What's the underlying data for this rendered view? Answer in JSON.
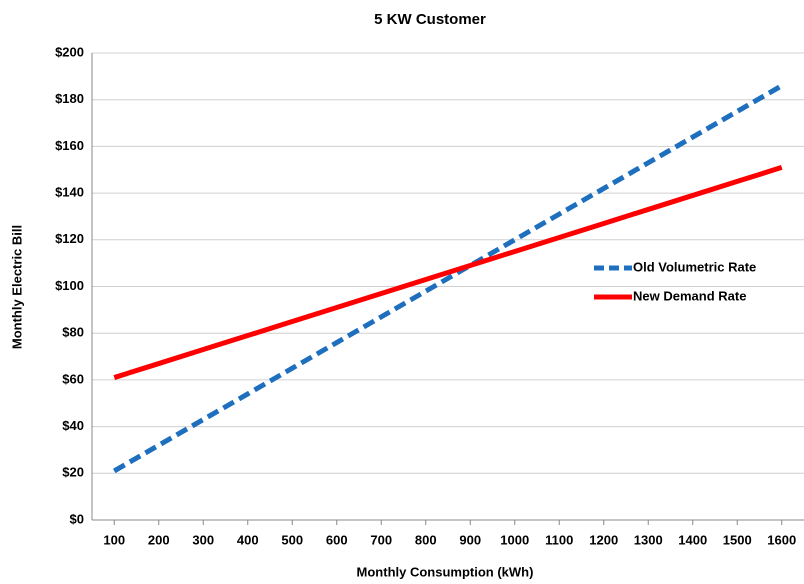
{
  "chart_data": {
    "type": "line",
    "title": "5 KW Customer",
    "x_label": "Monthly Consumption (kWh)",
    "y_label": "Monthly Electric Bill",
    "x": [
      100,
      200,
      300,
      400,
      500,
      600,
      700,
      800,
      900,
      1000,
      1100,
      1200,
      1300,
      1400,
      1500,
      1600
    ],
    "series": [
      {
        "name": "Old Volumetric Rate",
        "color": "#1f6fbf",
        "dash": true,
        "values": [
          21,
          32,
          43,
          54,
          65,
          76,
          87,
          98,
          109,
          120,
          131,
          142,
          153,
          164,
          175,
          186
        ]
      },
      {
        "name": "New Demand Rate",
        "color": "#ff0000",
        "dash": false,
        "values": [
          61,
          67,
          73,
          79,
          85,
          91,
          97,
          103,
          109,
          115,
          121,
          127,
          133,
          139,
          145,
          151
        ]
      }
    ],
    "xlim": [
      50,
      1650
    ],
    "xticks": [
      100,
      200,
      300,
      400,
      500,
      600,
      700,
      800,
      900,
      1000,
      1100,
      1200,
      1300,
      1400,
      1500,
      1600
    ],
    "ylim": [
      0,
      200
    ],
    "yticks": [
      {
        "value": 0,
        "label": "$0"
      },
      {
        "value": 20,
        "label": "$20"
      },
      {
        "value": 40,
        "label": "$40"
      },
      {
        "value": 60,
        "label": "$60"
      },
      {
        "value": 80,
        "label": "$80"
      },
      {
        "value": 100,
        "label": "$100"
      },
      {
        "value": 120,
        "label": "$120"
      },
      {
        "value": 140,
        "label": "$140"
      },
      {
        "value": 160,
        "label": "$160"
      },
      {
        "value": 180,
        "label": "$180"
      },
      {
        "value": 200,
        "label": "$200"
      }
    ],
    "grid": true,
    "legend": "right"
  }
}
